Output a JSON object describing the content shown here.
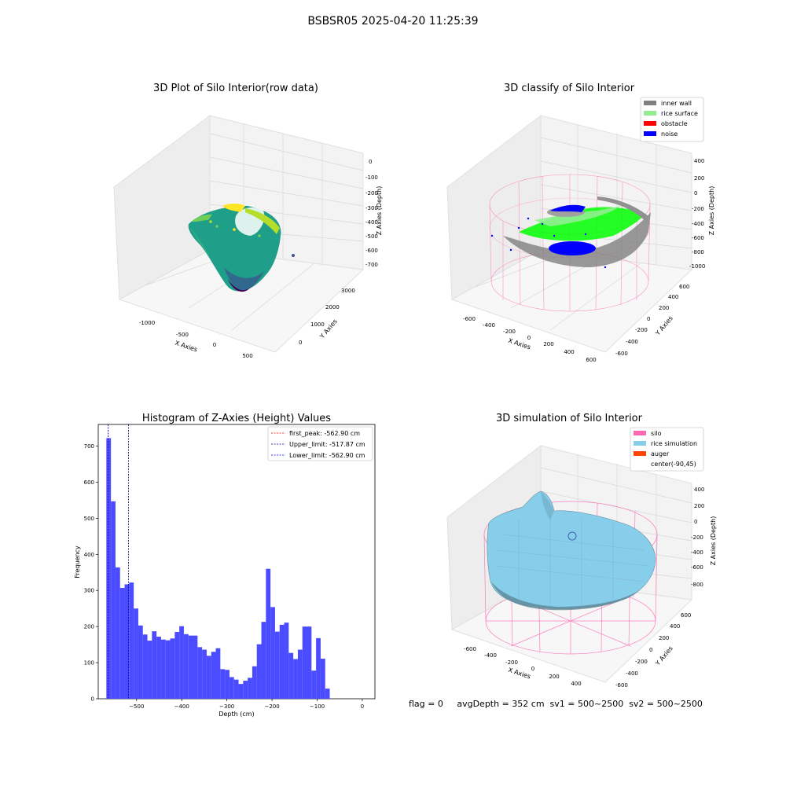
{
  "figure_title": "BSBSR05 2025-04-20 11:25:39",
  "footer": "flag = 0     avgDepth = 352 cm  sv1 = 500~2500  sv2 = 500~2500",
  "colors": {
    "inner_wall": "#808080",
    "rice_surface": "#90ee90",
    "obstacle": "#ff0000",
    "noise": "#0000ff",
    "silo": "#ff69b4",
    "rice_simulation": "#87ceeb",
    "auger": "#ff4500",
    "histogram_bar": "#4b4bff"
  },
  "panels": {
    "raw": {
      "title": "3D Plot of Silo Interior(row data)",
      "xlabel": "X Axies",
      "ylabel": "Y Axies",
      "zlabel": "Z Axies (Depth)",
      "x_ticks": [
        "-1000",
        "-500",
        "0",
        "500"
      ],
      "y_ticks": [
        "0",
        "1000",
        "2000",
        "3000"
      ],
      "z_ticks": [
        "0",
        "-100",
        "-200",
        "-300",
        "-400",
        "-500",
        "-600",
        "-700"
      ]
    },
    "classify": {
      "title": "3D classify of Silo Interior",
      "xlabel": "X Axies",
      "ylabel": "Y Axies",
      "zlabel": "Z Axies (Depth)",
      "x_ticks": [
        "-600",
        "-400",
        "-200",
        "0",
        "200",
        "400",
        "600"
      ],
      "y_ticks": [
        "-600",
        "-400",
        "-200",
        "0",
        "200",
        "400",
        "600"
      ],
      "z_ticks": [
        "400",
        "200",
        "0",
        "-200",
        "-400",
        "-600",
        "-800",
        "-1000"
      ],
      "legend": [
        {
          "label": "inner wall",
          "color": "#808080"
        },
        {
          "label": "rice surface",
          "color": "#90ee90"
        },
        {
          "label": "obstacle",
          "color": "#ff0000"
        },
        {
          "label": "noise",
          "color": "#0000ff"
        }
      ]
    },
    "simulation": {
      "title": "3D simulation of Silo Interior",
      "xlabel": "X Axies",
      "ylabel": "Y Axies",
      "zlabel": "Z Axies (Depth)",
      "x_ticks": [
        "-600",
        "-400",
        "-200",
        "0",
        "200",
        "400"
      ],
      "y_ticks": [
        "-600",
        "-400",
        "-200",
        "0",
        "200",
        "400",
        "600"
      ],
      "z_ticks": [
        "400",
        "200",
        "0",
        "-200",
        "-400",
        "-600",
        "-800"
      ],
      "legend": [
        {
          "label": "silo",
          "color": "#ff69b4"
        },
        {
          "label": "rice simulation",
          "color": "#87ceeb"
        },
        {
          "label": "auger",
          "color": "#ff4500"
        },
        {
          "label": "center(-90,45)",
          "color": ""
        }
      ]
    }
  },
  "chart_data": {
    "type": "bar",
    "title": "Histogram of Z-Axies (Height) Values",
    "xlabel": "Depth (cm)",
    "ylabel": "Frequency",
    "xlim": [
      -585,
      28
    ],
    "ylim": [
      0,
      760
    ],
    "x_ticks": [
      -500,
      -400,
      -300,
      -200,
      -100,
      0
    ],
    "y_ticks": [
      0,
      100,
      200,
      300,
      400,
      500,
      600,
      700
    ],
    "bin_start": -567,
    "bin_width": 10.1,
    "values": [
      722,
      547,
      364,
      307,
      317,
      322,
      250,
      203,
      178,
      161,
      187,
      172,
      164,
      162,
      167,
      185,
      201,
      179,
      175,
      175,
      143,
      136,
      119,
      130,
      140,
      82,
      80,
      60,
      53,
      41,
      50,
      58,
      90,
      151,
      213,
      360,
      254,
      186,
      205,
      211,
      127,
      110,
      136,
      200,
      200,
      78,
      168,
      111,
      28
    ],
    "vlines": [
      {
        "label": "first_peak: -562.90 cm",
        "x": -562.9,
        "color": "#ff0000",
        "style": "dashed"
      },
      {
        "label": "Upper_limit: -517.87 cm",
        "x": -517.87,
        "color": "#000080",
        "style": "dashed"
      },
      {
        "label": "Lower_limit: -562.90 cm",
        "x": -562.9,
        "color": "#0000ff",
        "style": "dashed"
      }
    ],
    "legend_position": "upper right"
  }
}
